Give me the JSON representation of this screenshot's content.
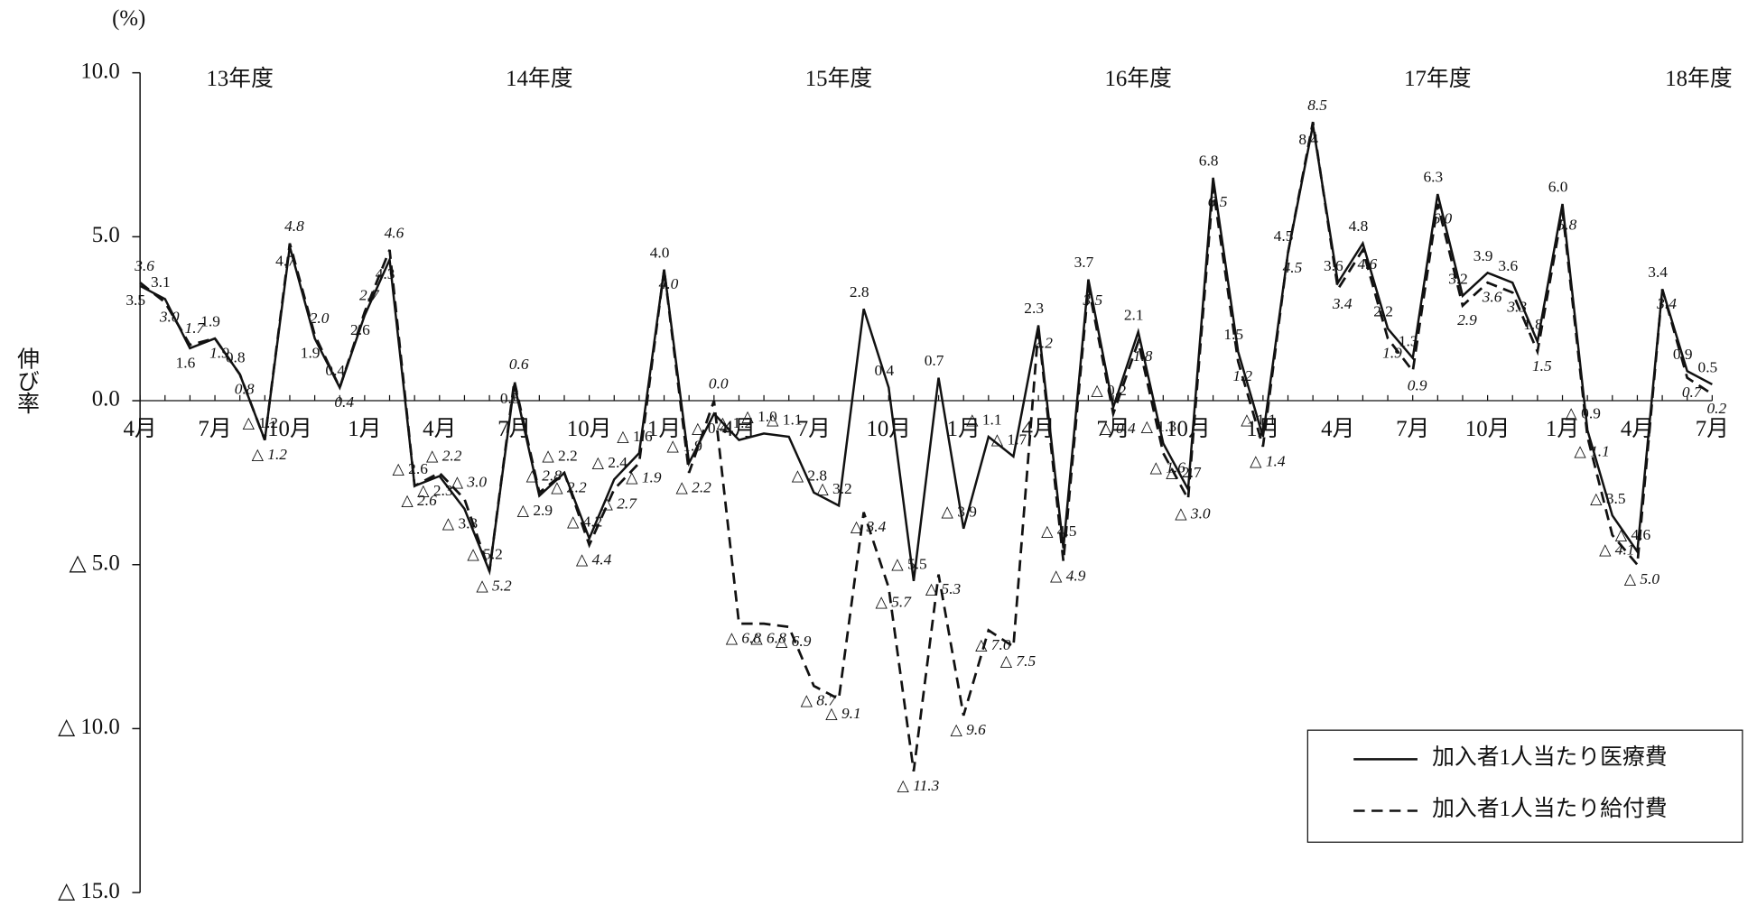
{
  "chart_data": {
    "type": "line",
    "y_label": "伸び率",
    "y_unit": "(%)",
    "annotations": [
      "13年度",
      "14年度",
      "15年度",
      "16年度",
      "17年度",
      "18年度"
    ],
    "categories": [
      "4月",
      null,
      null,
      "7月",
      null,
      null,
      "10月",
      null,
      null,
      "1月",
      null,
      null,
      "4月",
      null,
      null,
      "7月",
      null,
      null,
      "10月",
      null,
      null,
      "1月",
      null,
      null,
      "4月",
      null,
      null,
      "7月",
      null,
      null,
      "10月",
      null,
      null,
      "1月",
      null,
      null,
      "4月",
      null,
      null,
      "7月",
      null,
      null,
      "10月",
      null,
      null,
      "1月",
      null,
      null,
      "4月",
      null,
      null,
      "7月",
      null,
      null,
      "10月",
      null,
      null,
      "1月",
      null,
      null,
      "4月",
      null,
      null,
      "7月"
    ],
    "series": [
      {
        "name": "加入者1人当たり医療費",
        "color": "#111111",
        "dash": false,
        "values": [
          3.5,
          3.1,
          1.6,
          1.9,
          0.8,
          -1.2,
          4.7,
          1.9,
          0.4,
          2.6,
          4.3,
          -2.6,
          -2.3,
          -3.3,
          -5.2,
          0.5,
          -2.9,
          -2.2,
          -4.2,
          -2.4,
          -1.6,
          4.0,
          -1.9,
          -0.4,
          -1.2,
          -1.0,
          -1.1,
          -2.8,
          -3.2,
          2.8,
          0.4,
          -5.5,
          0.7,
          -3.9,
          -1.1,
          -1.7,
          2.3,
          -4.5,
          3.7,
          -0.2,
          2.1,
          -1.3,
          -2.7,
          6.8,
          1.5,
          -1.1,
          4.5,
          8.4,
          3.6,
          4.8,
          2.2,
          1.3,
          6.3,
          3.2,
          3.9,
          3.6,
          1.8,
          6.0,
          -0.9,
          -3.5,
          -4.6,
          3.4,
          0.9,
          0.5
        ],
        "value_labels": [
          "3.5",
          "3.1",
          "1.6",
          "1.9",
          "0.8",
          "△ 1.2",
          "4.7",
          "1.9",
          "0.4",
          "2.6",
          "4.3",
          "△ 2.6",
          "△ 2.3",
          "△ 3.3",
          "△ 5.2",
          "0.5",
          "△ 2.9",
          "△ 2.2",
          "△ 4.2",
          "△ 2.4",
          "△ 1.6",
          "4.0",
          "△ 1.9",
          "△ 0.4",
          "△ 1.2",
          "△ 1.0",
          "△ 1.1",
          "△ 2.8",
          "△ 3.2",
          "2.8",
          "0.4",
          "△ 5.5",
          "0.7",
          "△ 3.9",
          "△ 1.1",
          "△ 1.7",
          "2.3",
          "△ 4.5",
          "3.7",
          "△ 0.2",
          "2.1",
          "△ 1.3",
          "△ 2.7",
          "6.8",
          "1.5",
          "△ 1.1",
          "4.5",
          "8.4",
          "3.6",
          "4.8",
          "2.2",
          "1.3",
          "6.3",
          "3.2",
          "3.9",
          "3.6",
          "1.8",
          "6.0",
          "△ 0.9",
          "△ 3.5",
          "△ 4.6",
          "3.4",
          "0.9",
          "0.5"
        ]
      },
      {
        "name": "加入者1人当たり給付費",
        "color": "#111111",
        "dash": true,
        "values": [
          3.6,
          3.0,
          1.7,
          1.9,
          0.8,
          -1.2,
          4.8,
          2.0,
          0.4,
          2.7,
          4.6,
          -2.6,
          -2.2,
          -3.0,
          -5.2,
          0.6,
          -2.8,
          -2.2,
          -4.4,
          -2.7,
          -1.9,
          4.0,
          -2.2,
          0.0,
          -6.8,
          -6.8,
          -6.9,
          -8.7,
          -9.1,
          -3.4,
          -5.7,
          -11.3,
          -5.3,
          -9.6,
          -7.0,
          -7.5,
          2.2,
          -4.9,
          3.5,
          -0.4,
          1.8,
          -1.6,
          -3.0,
          6.5,
          1.2,
          -1.4,
          4.5,
          8.5,
          3.4,
          4.6,
          1.9,
          0.9,
          6.0,
          2.9,
          3.6,
          3.3,
          1.5,
          5.8,
          -1.1,
          -4.1,
          -5.0,
          3.4,
          0.7,
          0.2
        ],
        "value_labels": [
          "3.6",
          "3.0",
          "1.7",
          "1.9",
          "0.8",
          "△ 1.2",
          "4.8",
          "2.0",
          "0.4",
          "2.7",
          "4.6",
          "△ 2.6",
          "△ 2.2",
          "△ 3.0",
          "△ 5.2",
          "0.6",
          "△ 2.8",
          "△ 2.2",
          "△ 4.4",
          "△ 2.7",
          "△ 1.9",
          "4.0",
          "△ 2.2",
          "0.0",
          "△ 6.8",
          "△ 6.8",
          "△ 6.9",
          "△ 8.7",
          "△ 9.1",
          "△ 3.4",
          "△ 5.7",
          "△ 11.3",
          "△ 5.3",
          "△ 9.6",
          "△ 7.0",
          "△ 7.5",
          "2.2",
          "△ 4.9",
          "3.5",
          "△ 0.4",
          "1.8",
          "△ 1.6",
          "△ 3.0",
          "6.5",
          "1.2",
          "△ 1.4",
          "4.5",
          "8.5",
          "3.4",
          "4.6",
          "1.9",
          "0.9",
          "6.0",
          "2.9",
          "3.6",
          "3.3",
          "1.5",
          "5.8",
          "△ 1.1",
          "△ 4.1",
          "△ 5.0",
          "3.4",
          "0.7",
          "0.2"
        ]
      }
    ],
    "ylim": [
      -15,
      10
    ],
    "yticks": [
      {
        "value": -15,
        "label": "△ 15.0"
      },
      {
        "value": -10,
        "label": "△ 10.0"
      },
      {
        "value": -5,
        "label": "△ 5.0"
      },
      {
        "value": 0,
        "label": "0.0"
      },
      {
        "value": 5,
        "label": "5.0"
      },
      {
        "value": 10,
        "label": "10.0"
      }
    ],
    "legend": "lower right"
  }
}
